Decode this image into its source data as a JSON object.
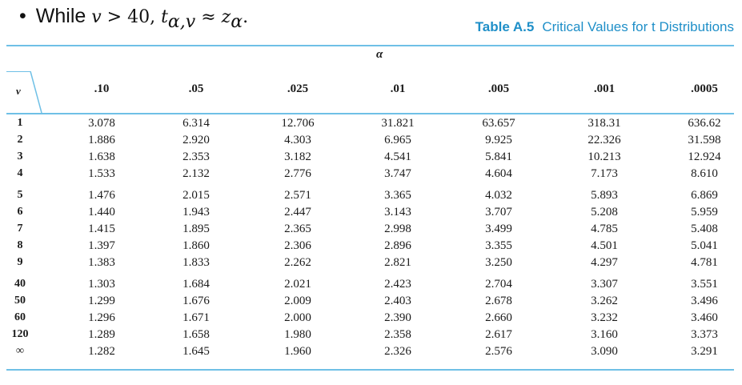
{
  "bullet": {
    "dot": "•",
    "while": "While",
    "nu": "v",
    "gt": " > 40, ",
    "t": "t",
    "t_sub": "α,v",
    "approx": " ≈ ",
    "z": "z",
    "z_sub": "α",
    "end": "."
  },
  "table": {
    "label": "Table A.5",
    "title": "Critical Values for t Distributions",
    "alpha_header": "α",
    "nu_header": "v",
    "columns": [
      ".10",
      ".05",
      ".025",
      ".01",
      ".005",
      ".001",
      ".0005"
    ],
    "rows": [
      {
        "v": "1",
        "values": [
          "3.078",
          "6.314",
          "12.706",
          "31.821",
          "63.657",
          "318.31",
          "636.62"
        ]
      },
      {
        "v": "2",
        "values": [
          "1.886",
          "2.920",
          "4.303",
          "6.965",
          "9.925",
          "22.326",
          "31.598"
        ]
      },
      {
        "v": "3",
        "values": [
          "1.638",
          "2.353",
          "3.182",
          "4.541",
          "5.841",
          "10.213",
          "12.924"
        ]
      },
      {
        "v": "4",
        "values": [
          "1.533",
          "2.132",
          "2.776",
          "3.747",
          "4.604",
          "7.173",
          "8.610"
        ]
      },
      {
        "v": "5",
        "values": [
          "1.476",
          "2.015",
          "2.571",
          "3.365",
          "4.032",
          "5.893",
          "6.869"
        ]
      },
      {
        "v": "6",
        "values": [
          "1.440",
          "1.943",
          "2.447",
          "3.143",
          "3.707",
          "5.208",
          "5.959"
        ]
      },
      {
        "v": "7",
        "values": [
          "1.415",
          "1.895",
          "2.365",
          "2.998",
          "3.499",
          "4.785",
          "5.408"
        ]
      },
      {
        "v": "8",
        "values": [
          "1.397",
          "1.860",
          "2.306",
          "2.896",
          "3.355",
          "4.501",
          "5.041"
        ]
      },
      {
        "v": "9",
        "values": [
          "1.383",
          "1.833",
          "2.262",
          "2.821",
          "3.250",
          "4.297",
          "4.781"
        ]
      },
      {
        "v": "40",
        "values": [
          "1.303",
          "1.684",
          "2.021",
          "2.423",
          "2.704",
          "3.307",
          "3.551"
        ]
      },
      {
        "v": "50",
        "values": [
          "1.299",
          "1.676",
          "2.009",
          "2.403",
          "2.678",
          "3.262",
          "3.496"
        ]
      },
      {
        "v": "60",
        "values": [
          "1.296",
          "1.671",
          "2.000",
          "2.390",
          "2.660",
          "3.232",
          "3.460"
        ]
      },
      {
        "v": "120",
        "values": [
          "1.289",
          "1.658",
          "1.980",
          "2.358",
          "2.617",
          "3.160",
          "3.373"
        ]
      },
      {
        "v": "∞",
        "values": [
          "1.282",
          "1.645",
          "1.960",
          "2.326",
          "2.576",
          "3.090",
          "3.291"
        ]
      }
    ]
  },
  "colors": {
    "accent": "#1f8fc8",
    "rule": "#6fc0e6"
  }
}
